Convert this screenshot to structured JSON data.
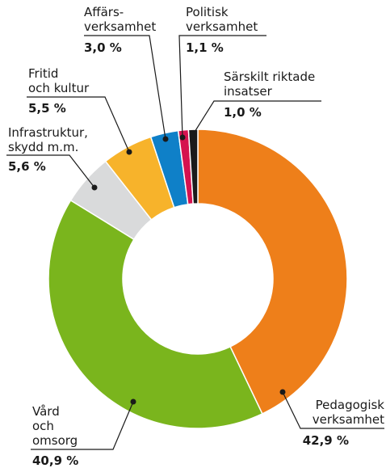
{
  "chart_data": {
    "type": "donut",
    "categories": [
      "Pedagogisk\nverksamhet",
      "Vård\noch\nomsorg",
      "Infrastruktur,\nskydd m.m.",
      "Fritid\noch kultur",
      "Affärs-\nverksamhet",
      "Politisk\nverksamhet",
      "Särskilt riktade\ninsatser"
    ],
    "values": [
      42.9,
      40.9,
      5.6,
      5.5,
      3.0,
      1.1,
      1.0
    ],
    "value_labels": [
      "42,9 %",
      "40,9 %",
      "5,6 %",
      "5,5 %",
      "3,0 %",
      "1,1 %",
      "1,0 %"
    ],
    "colors": [
      "#ee7f1a",
      "#7ab51d",
      "#d9dadb",
      "#f7b32b",
      "#0f80c8",
      "#d5124f",
      "#1a1a1a"
    ]
  }
}
